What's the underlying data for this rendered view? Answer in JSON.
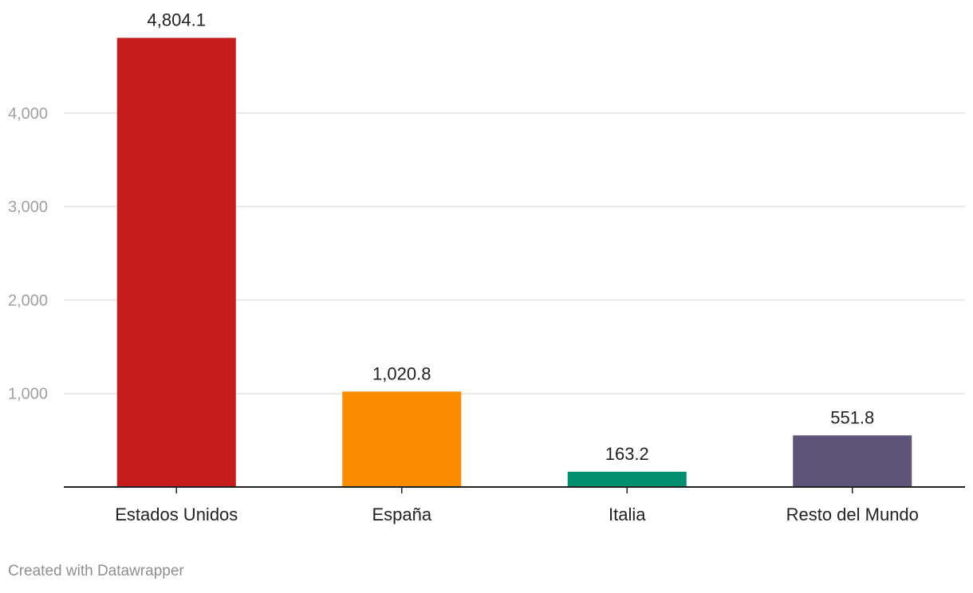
{
  "chart_data": {
    "type": "bar",
    "categories": [
      "Estados Unidos",
      "España",
      "Italia",
      "Resto del Mundo"
    ],
    "values": [
      4804.1,
      1020.8,
      163.2,
      551.8
    ],
    "value_labels": [
      "4,804.1",
      "1,020.8",
      "163.2",
      "551.8"
    ],
    "colors": [
      "#c71c1c",
      "#f98c00",
      "#00906f",
      "#5e5479"
    ],
    "title": "",
    "xlabel": "",
    "ylabel": "",
    "ylim": [
      0,
      5000
    ],
    "yticks": [
      1000,
      2000,
      3000,
      4000
    ],
    "ytick_labels": [
      "1,000",
      "2,000",
      "3,000",
      "4,000"
    ],
    "grid": true,
    "legend": "none"
  },
  "footer": {
    "credit": "Created with Datawrapper"
  }
}
